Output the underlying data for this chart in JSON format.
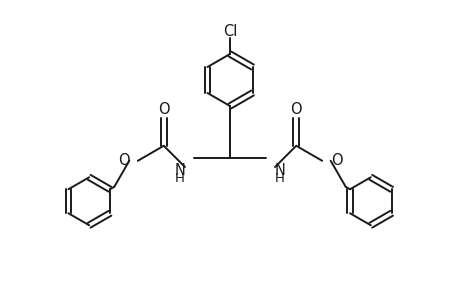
{
  "bg_color": "#ffffff",
  "line_color": "#1a1a1a",
  "line_width": 1.4,
  "font_size": 10.5,
  "figsize": [
    4.6,
    3.0
  ],
  "dpi": 100,
  "xlim": [
    0,
    9.2
  ],
  "ylim": [
    0,
    6.0
  ]
}
